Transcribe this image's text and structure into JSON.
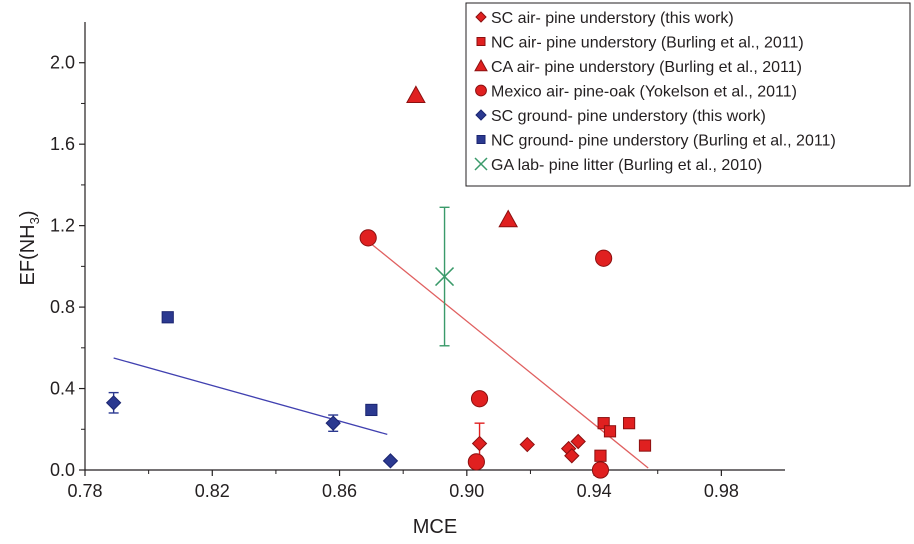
{
  "chart_data": {
    "type": "scatter",
    "xlabel": "MCE",
    "ylabel_main": "EF(NH",
    "ylabel_sub": "3",
    "ylabel_end": ")",
    "xlim": [
      0.78,
      1.0
    ],
    "ylim": [
      0,
      2.2
    ],
    "xticks": [
      0.78,
      0.82,
      0.86,
      0.9,
      0.94,
      0.98
    ],
    "xtick_labels": [
      "0.78",
      "0.82",
      "0.86",
      "0.90",
      "0.94",
      "0.98"
    ],
    "yticks": [
      0,
      0.4,
      0.8,
      1.2,
      1.6,
      2.0
    ],
    "ytick_labels": [
      "0.0",
      "0.4",
      "0.8",
      "1.2",
      "1.6",
      "2.0"
    ],
    "grid": false,
    "legend_position": "top-right",
    "series": [
      {
        "name": "SC air- pine understory (this work)",
        "marker": "diamond",
        "color": "#e02020",
        "x": [
          0.904,
          0.919,
          0.932,
          0.933,
          0.935
        ],
        "y": [
          0.13,
          0.125,
          0.105,
          0.07,
          0.14
        ],
        "error_y": [
          0.1,
          0,
          0,
          0,
          0
        ]
      },
      {
        "name": "NC air- pine understory (Burling et al., 2011)",
        "marker": "square",
        "color": "#e02020",
        "x": [
          0.942,
          0.943,
          0.945,
          0.951,
          0.956
        ],
        "y": [
          0.07,
          0.23,
          0.19,
          0.23,
          0.12
        ]
      },
      {
        "name": "CA air- pine understory (Burling et al., 2011)",
        "marker": "triangle",
        "color": "#e02020",
        "x": [
          0.884,
          0.913
        ],
        "y": [
          1.84,
          1.23
        ]
      },
      {
        "name": "Mexico air- pine-oak (Yokelson et al., 2011)",
        "marker": "circle",
        "color": "#e02020",
        "x": [
          0.869,
          0.903,
          0.904,
          0.942,
          0.943
        ],
        "y": [
          1.14,
          0.04,
          0.35,
          0.0,
          1.04
        ]
      },
      {
        "name": "SC ground- pine understory (this work)",
        "marker": "diamond",
        "color": "#2b3990",
        "x": [
          0.789,
          0.858,
          0.876
        ],
        "y": [
          0.33,
          0.23,
          0.045
        ],
        "error_y": [
          0.05,
          0.04,
          0
        ]
      },
      {
        "name": "NC ground- pine understory (Burling et al., 2011)",
        "marker": "square",
        "color": "#2b3990",
        "x": [
          0.806,
          0.87
        ],
        "y": [
          0.75,
          0.295
        ]
      },
      {
        "name": "GA lab- pine litter (Burling et al., 2010)",
        "marker": "x",
        "color": "#3a9a6a",
        "x": [
          0.893
        ],
        "y": [
          0.95
        ],
        "error_y": [
          0.34
        ]
      }
    ],
    "fit_lines": [
      {
        "color": "#e06060",
        "x": [
          0.87,
          0.957
        ],
        "y": [
          1.11,
          0.01
        ]
      },
      {
        "color": "#4040b0",
        "x": [
          0.789,
          0.875
        ],
        "y": [
          0.55,
          0.175
        ]
      }
    ]
  }
}
